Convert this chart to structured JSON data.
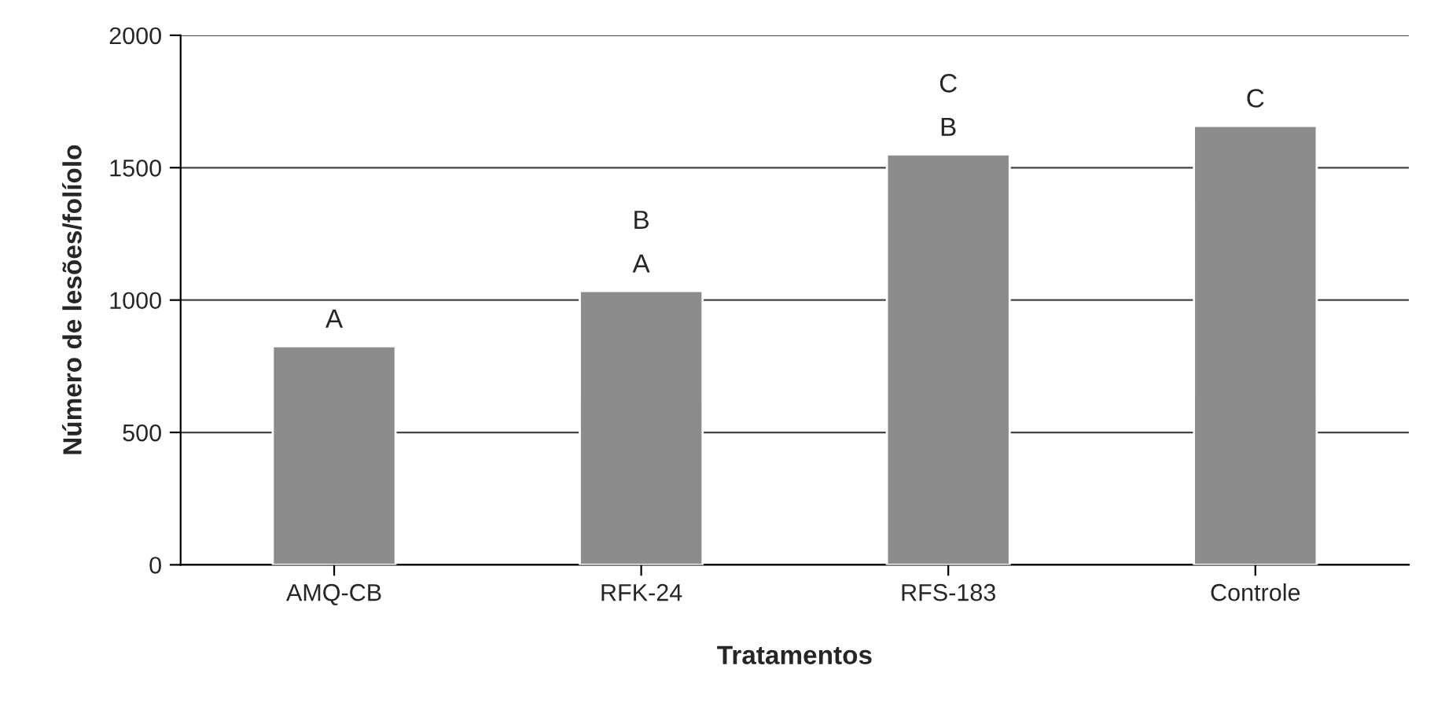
{
  "chart_data": {
    "type": "bar",
    "xlabel": "Tratamentos",
    "ylabel": "Número de lesões/folíolo",
    "categories": [
      "AMQ-CB",
      "RFK-24",
      "RFS-183",
      "Controle"
    ],
    "values": [
      826,
      1034,
      1550,
      1658
    ],
    "color": "#8c8c8c",
    "ylim": [
      0,
      2000
    ],
    "yticks": [
      0,
      500,
      1000,
      1500,
      2000
    ],
    "grid": "y",
    "annotations": [
      {
        "text": "A",
        "x": "AMQ-CB",
        "y": 826
      },
      {
        "text": "A",
        "x": "RFK-24",
        "y": 1034
      },
      {
        "text": "B",
        "x": "RFK-24",
        "y": 1034
      },
      {
        "text": "B",
        "x": "RFS-183",
        "y": 1550
      },
      {
        "text": "C",
        "x": "RFS-183",
        "y": 1550
      },
      {
        "text": "C",
        "x": "Controle",
        "y": 1658
      }
    ]
  }
}
